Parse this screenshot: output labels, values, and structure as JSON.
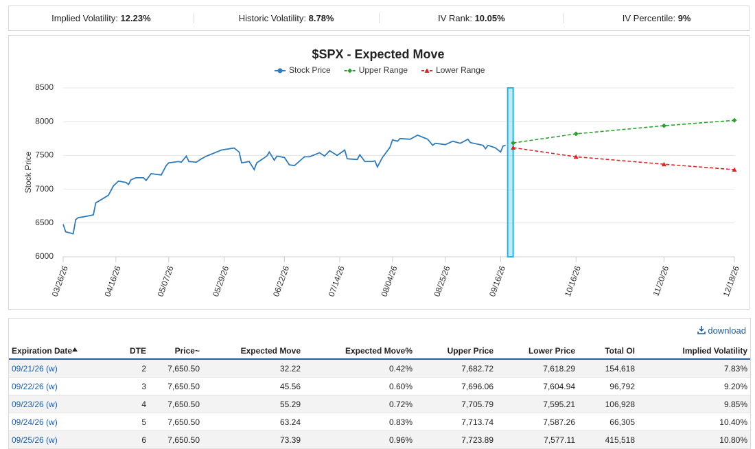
{
  "stats": [
    {
      "label": "Implied Volatility:",
      "value": "12.23%"
    },
    {
      "label": "Historic Volatility:",
      "value": "8.78%"
    },
    {
      "label": "IV Rank:",
      "value": "10.05%"
    },
    {
      "label": "IV Percentile:",
      "value": "9%"
    }
  ],
  "chart_data": {
    "type": "line",
    "title": "$SPX - Expected Move",
    "y_label": "Stock Price",
    "ylim": [
      6000,
      8500
    ],
    "yticks": [
      6000,
      6500,
      7000,
      7500,
      8000,
      8500
    ],
    "grid": true,
    "xlim": [
      "03/26/26",
      "12/18/26"
    ],
    "xticks": [
      "03/26/26",
      "04/16/26",
      "05/07/26",
      "05/29/26",
      "06/22/26",
      "07/14/26",
      "08/04/26",
      "08/25/26",
      "09/16/26",
      "10/16/26",
      "11/20/26",
      "12/18/26"
    ],
    "series": [
      {
        "name": "Stock Price",
        "color": "#2f7ab8",
        "marker": "circle",
        "x": [
          "03/26/26",
          "03/27/26",
          "03/30/26",
          "03/31/26",
          "04/01/26",
          "04/03/26",
          "04/07/26",
          "04/08/26",
          "04/09/26",
          "04/13/26",
          "04/15/26",
          "04/17/26",
          "04/20/26",
          "04/21/26",
          "04/22/26",
          "04/24/26",
          "04/27/26",
          "04/28/26",
          "04/30/26",
          "05/04/26",
          "05/06/26",
          "05/07/26",
          "05/11/26",
          "05/12/26",
          "05/14/26",
          "05/15/26",
          "05/18/26",
          "05/20/26",
          "05/22/26",
          "05/28/26",
          "06/02/26",
          "06/04/26",
          "06/05/26",
          "06/08/26",
          "06/10/26",
          "06/11/26",
          "06/15/26",
          "06/16/26",
          "06/18/26",
          "06/19/26",
          "06/22/26",
          "06/24/26",
          "06/26/26",
          "06/30/26",
          "07/02/26",
          "07/06/26",
          "07/08/26",
          "07/10/26",
          "07/13/26",
          "07/16/26",
          "07/17/26",
          "07/21/26",
          "07/22/26",
          "07/24/26",
          "07/27/26",
          "07/28/26",
          "07/29/26",
          "07/31/26",
          "08/03/26",
          "08/04/26",
          "08/06/26",
          "08/07/26",
          "08/11/26",
          "08/14/26",
          "08/18/26",
          "08/20/26",
          "08/21/26",
          "08/25/26",
          "08/28/26",
          "08/31/26",
          "09/03/26",
          "09/04/26",
          "09/09/26",
          "09/10/26",
          "09/11/26",
          "09/14/26",
          "09/16/26",
          "09/17/26",
          "09/18/26"
        ],
        "values": [
          6480,
          6370,
          6340,
          6550,
          6580,
          6590,
          6620,
          6800,
          6820,
          6910,
          7050,
          7120,
          7100,
          7070,
          7140,
          7170,
          7170,
          7130,
          7230,
          7210,
          7350,
          7390,
          7410,
          7400,
          7490,
          7410,
          7400,
          7450,
          7490,
          7580,
          7610,
          7550,
          7390,
          7410,
          7290,
          7390,
          7490,
          7550,
          7430,
          7490,
          7470,
          7360,
          7350,
          7480,
          7480,
          7540,
          7490,
          7570,
          7500,
          7580,
          7450,
          7440,
          7510,
          7410,
          7410,
          7420,
          7330,
          7470,
          7620,
          7730,
          7710,
          7750,
          7740,
          7800,
          7740,
          7650,
          7680,
          7660,
          7710,
          7680,
          7740,
          7690,
          7650,
          7600,
          7650,
          7610,
          7550,
          7640,
          7650
        ]
      },
      {
        "name": "Upper Range",
        "color": "#2ca02c",
        "marker": "diamond",
        "dashed": true,
        "x": [
          "09/21/26",
          "10/16/26",
          "11/20/26",
          "12/18/26"
        ],
        "values": [
          7685,
          7820,
          7940,
          8020
        ]
      },
      {
        "name": "Lower Range",
        "color": "#d62728",
        "marker": "triangle",
        "dashed": true,
        "x": [
          "09/21/26",
          "10/16/26",
          "11/20/26",
          "12/18/26"
        ],
        "values": [
          7615,
          7480,
          7370,
          7290
        ]
      }
    ]
  },
  "download": "download",
  "table": {
    "columns": [
      "Expiration Date",
      "DTE",
      "Price~",
      "Expected Move",
      "Expected Move%",
      "Upper Price",
      "Lower Price",
      "Total OI",
      "Implied Volatility"
    ],
    "rows": [
      [
        "09/21/26 (w)",
        "2",
        "7,650.50",
        "32.22",
        "0.42%",
        "7,682.72",
        "7,618.29",
        "154,618",
        "7.83%"
      ],
      [
        "09/22/26 (w)",
        "3",
        "7,650.50",
        "45.56",
        "0.60%",
        "7,696.06",
        "7,604.94",
        "96,792",
        "9.20%"
      ],
      [
        "09/23/26 (w)",
        "4",
        "7,650.50",
        "55.29",
        "0.72%",
        "7,705.79",
        "7,595.21",
        "106,928",
        "9.85%"
      ],
      [
        "09/24/26 (w)",
        "5",
        "7,650.50",
        "63.24",
        "0.83%",
        "7,713.74",
        "7,587.26",
        "66,305",
        "10.40%"
      ],
      [
        "09/25/26 (w)",
        "6",
        "7,650.50",
        "73.39",
        "0.96%",
        "7,723.89",
        "7,577.11",
        "415,518",
        "10.80%"
      ]
    ]
  }
}
